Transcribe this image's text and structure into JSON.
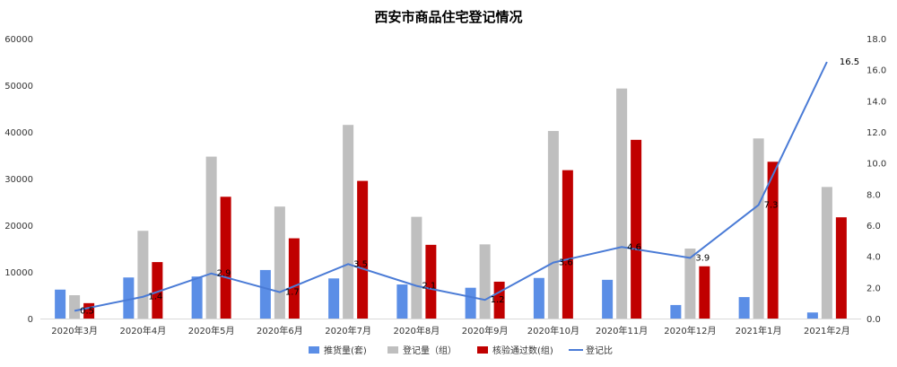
{
  "chart_data": {
    "type": "bar",
    "title": "西安市商品住宅登记情况",
    "categories": [
      "2020年3月",
      "2020年4月",
      "2020年5月",
      "2020年6月",
      "2020年7月",
      "2020年8月",
      "2020年9月",
      "2020年10月",
      "2020年11月",
      "2020年12月",
      "2021年1月",
      "2021年2月"
    ],
    "series": [
      {
        "name": "推货量(套)",
        "kind": "bar",
        "axis": "left",
        "color": "#5b8ee6",
        "values": [
          6200,
          8800,
          9000,
          10400,
          8600,
          7300,
          6600,
          8700,
          8300,
          2900,
          4600,
          1300
        ]
      },
      {
        "name": "登记量（组）",
        "kind": "bar",
        "axis": "left",
        "color": "#bfbfbf",
        "values": [
          5000,
          18800,
          34700,
          24000,
          41500,
          21800,
          15900,
          40200,
          49300,
          15000,
          38600,
          28200
        ]
      },
      {
        "name": "核验通过数(组)",
        "kind": "bar",
        "axis": "left",
        "color": "#c00000",
        "values": [
          3300,
          12100,
          26100,
          17200,
          29500,
          15800,
          7900,
          31800,
          38300,
          11200,
          33600,
          21700
        ]
      },
      {
        "name": "登记比",
        "kind": "line",
        "axis": "right",
        "color": "#4a7bd6",
        "values": [
          0.5,
          1.4,
          2.9,
          1.7,
          3.5,
          2.1,
          1.2,
          3.6,
          4.6,
          3.9,
          7.3,
          16.5
        ],
        "labels": [
          "0.5",
          "1.4",
          "2.9",
          "1.7",
          "3.5",
          "2.1",
          "1.2",
          "3.6",
          "4.6",
          "3.9",
          "7.3",
          "16.5"
        ]
      }
    ],
    "y_left": {
      "min": 0,
      "max": 60000,
      "ticks": [
        "0",
        "10000",
        "20000",
        "30000",
        "40000",
        "50000",
        "60000"
      ]
    },
    "y_right": {
      "min": 0,
      "max": 18,
      "ticks": [
        "0.0",
        "2.0",
        "4.0",
        "6.0",
        "8.0",
        "10.0",
        "12.0",
        "14.0",
        "16.0",
        "18.0"
      ]
    },
    "grid": false,
    "legend_position": "bottom"
  }
}
